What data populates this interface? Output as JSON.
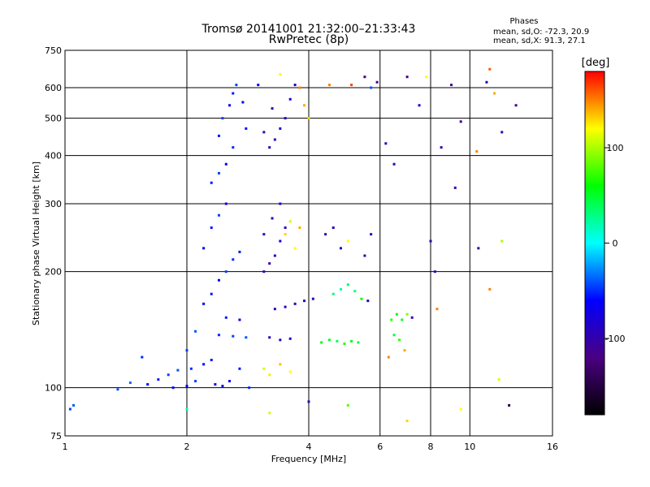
{
  "chart_data": {
    "type": "scatter",
    "title": "Tromsø 20141001 21:32:00–21:33:43",
    "subtitle": "RwPretec (8p)",
    "xlabel": "Frequency [MHz]",
    "ylabel": "Stationary phase Virtual Height [km]",
    "x_scale": "log2",
    "y_scale": "log",
    "xlim": [
      1,
      16
    ],
    "ylim": [
      75,
      750
    ],
    "x_ticks": [
      1,
      2,
      4,
      6,
      8,
      10,
      16
    ],
    "y_ticks": [
      75,
      100,
      200,
      300,
      400,
      500,
      600,
      750
    ],
    "grid": true,
    "colorbar": {
      "label": "[deg]",
      "range": [
        -180,
        180
      ],
      "ticks": [
        100,
        0,
        -100
      ],
      "colormap": [
        "#000000",
        "#4b0082",
        "#0000ff",
        "#00ffff",
        "#00ff00",
        "#ffff00",
        "#ff0000"
      ]
    },
    "stats": {
      "heading": "Phases",
      "o_mode": "mean, sd,O: -72.3, 20.9",
      "x_mode": "mean, sd,X:  91.3, 27.1"
    },
    "series": [
      {
        "points": [
          [
            1.03,
            88,
            -45
          ],
          [
            1.05,
            90,
            -40
          ],
          [
            1.35,
            99,
            -40
          ],
          [
            1.45,
            103,
            -35
          ],
          [
            1.55,
            120,
            -50
          ],
          [
            1.6,
            102,
            -60
          ],
          [
            1.7,
            105,
            -55
          ],
          [
            1.8,
            108,
            -45
          ],
          [
            1.85,
            100,
            -70
          ],
          [
            1.9,
            111,
            -40
          ],
          [
            2.0,
            101,
            -60
          ],
          [
            2.05,
            112,
            -50
          ],
          [
            2.1,
            104,
            -45
          ],
          [
            2.2,
            115,
            -60
          ],
          [
            2.3,
            118,
            -55
          ],
          [
            2.35,
            102,
            -80
          ],
          [
            2.45,
            101,
            -75
          ],
          [
            2.55,
            104,
            -65
          ],
          [
            2.7,
            112,
            -55
          ],
          [
            2.85,
            100,
            -50
          ],
          [
            2.0,
            125,
            -45
          ],
          [
            2.1,
            140,
            -40
          ],
          [
            2.2,
            165,
            -60
          ],
          [
            2.3,
            175,
            -55
          ],
          [
            2.4,
            190,
            -65
          ],
          [
            2.5,
            200,
            -45
          ],
          [
            2.6,
            215,
            -50
          ],
          [
            2.7,
            225,
            -55
          ],
          [
            2.2,
            230,
            -60
          ],
          [
            2.3,
            260,
            -55
          ],
          [
            2.4,
            280,
            -45
          ],
          [
            2.5,
            300,
            -70
          ],
          [
            2.3,
            340,
            -55
          ],
          [
            2.4,
            360,
            -45
          ],
          [
            2.5,
            380,
            -60
          ],
          [
            2.6,
            420,
            -50
          ],
          [
            2.4,
            450,
            -55
          ],
          [
            2.45,
            500,
            -45
          ],
          [
            2.55,
            540,
            -65
          ],
          [
            2.6,
            580,
            -55
          ],
          [
            2.65,
            610,
            -45
          ],
          [
            2.75,
            550,
            -60
          ],
          [
            2.8,
            470,
            -55
          ],
          [
            2.4,
            137,
            -50
          ],
          [
            2.6,
            136,
            -45
          ],
          [
            2.8,
            135,
            -40
          ],
          [
            2.5,
            152,
            -55
          ],
          [
            2.7,
            150,
            -60
          ],
          [
            3.1,
            200,
            -90
          ],
          [
            3.2,
            210,
            -100
          ],
          [
            3.3,
            220,
            -95
          ],
          [
            3.4,
            240,
            -85
          ],
          [
            3.1,
            250,
            -100
          ],
          [
            3.25,
            275,
            -90
          ],
          [
            3.4,
            300,
            -85
          ],
          [
            3.5,
            260,
            -95
          ],
          [
            3.2,
            420,
            -95
          ],
          [
            3.3,
            440,
            -100
          ],
          [
            3.4,
            470,
            -90
          ],
          [
            3.5,
            500,
            -85
          ],
          [
            3.1,
            460,
            -100
          ],
          [
            3.25,
            530,
            -90
          ],
          [
            3.6,
            560,
            -80
          ],
          [
            3.7,
            610,
            -85
          ],
          [
            3.2,
            135,
            -90
          ],
          [
            3.4,
            133,
            -95
          ],
          [
            3.6,
            134,
            -85
          ],
          [
            3.3,
            160,
            -100
          ],
          [
            3.5,
            162,
            -95
          ],
          [
            3.7,
            165,
            -90
          ],
          [
            3.9,
            168,
            -100
          ],
          [
            4.1,
            170,
            -95
          ],
          [
            3.1,
            112,
            110
          ],
          [
            3.2,
            108,
            125
          ],
          [
            3.4,
            115,
            135
          ],
          [
            3.6,
            110,
            120
          ],
          [
            3.5,
            250,
            130
          ],
          [
            3.6,
            270,
            110
          ],
          [
            3.7,
            230,
            120
          ],
          [
            3.8,
            260,
            140
          ],
          [
            3.8,
            600,
            150
          ],
          [
            3.9,
            540,
            140
          ],
          [
            4.0,
            500,
            130
          ],
          [
            4.3,
            131,
            60
          ],
          [
            4.5,
            133,
            50
          ],
          [
            4.7,
            132,
            40
          ],
          [
            4.9,
            130,
            70
          ],
          [
            5.1,
            132,
            55
          ],
          [
            5.3,
            131,
            45
          ],
          [
            4.6,
            175,
            30
          ],
          [
            4.8,
            180,
            20
          ],
          [
            5.0,
            185,
            40
          ],
          [
            5.2,
            178,
            30
          ],
          [
            5.4,
            170,
            60
          ],
          [
            5.6,
            168,
            -95
          ],
          [
            4.4,
            250,
            -100
          ],
          [
            4.6,
            260,
            -90
          ],
          [
            4.8,
            230,
            -85
          ],
          [
            5.0,
            240,
            120
          ],
          [
            5.5,
            220,
            -100
          ],
          [
            5.7,
            250,
            -90
          ],
          [
            5.7,
            600,
            -40
          ],
          [
            6.4,
            150,
            70
          ],
          [
            6.6,
            155,
            60
          ],
          [
            6.8,
            150,
            50
          ],
          [
            7.0,
            155,
            90
          ],
          [
            7.2,
            152,
            -100
          ],
          [
            6.5,
            137,
            40
          ],
          [
            6.7,
            133,
            70
          ],
          [
            6.3,
            120,
            150
          ],
          [
            6.9,
            125,
            140
          ],
          [
            6.2,
            430,
            -100
          ],
          [
            6.5,
            380,
            -90
          ],
          [
            7.0,
            640,
            -110
          ],
          [
            7.5,
            540,
            -85
          ],
          [
            8.0,
            240,
            -100
          ],
          [
            8.2,
            200,
            -90
          ],
          [
            8.5,
            420,
            -100
          ],
          [
            9.0,
            610,
            -110
          ],
          [
            9.2,
            330,
            -100
          ],
          [
            9.5,
            490,
            -110
          ],
          [
            10.5,
            230,
            -100
          ],
          [
            11.0,
            620,
            -90
          ],
          [
            11.2,
            670,
            160
          ],
          [
            12.0,
            460,
            -95
          ],
          [
            13.0,
            540,
            -110
          ],
          [
            12.5,
            90,
            -150
          ],
          [
            7.8,
            640,
            120
          ],
          [
            8.3,
            160,
            150
          ],
          [
            9.5,
            88,
            120
          ],
          [
            10.4,
            410,
            150
          ],
          [
            11.5,
            580,
            140
          ],
          [
            12.0,
            240,
            100
          ],
          [
            11.8,
            105,
            110
          ],
          [
            11.2,
            180,
            150
          ],
          [
            7.0,
            82,
            130
          ],
          [
            4.0,
            92,
            -100
          ],
          [
            5.0,
            90,
            80
          ],
          [
            3.2,
            86,
            110
          ],
          [
            2.0,
            88,
            20
          ],
          [
            3.0,
            610,
            -60
          ],
          [
            3.4,
            650,
            120
          ],
          [
            4.5,
            610,
            150
          ],
          [
            5.1,
            610,
            165
          ],
          [
            5.5,
            640,
            -110
          ],
          [
            5.9,
            620,
            -120
          ]
        ]
      }
    ]
  }
}
